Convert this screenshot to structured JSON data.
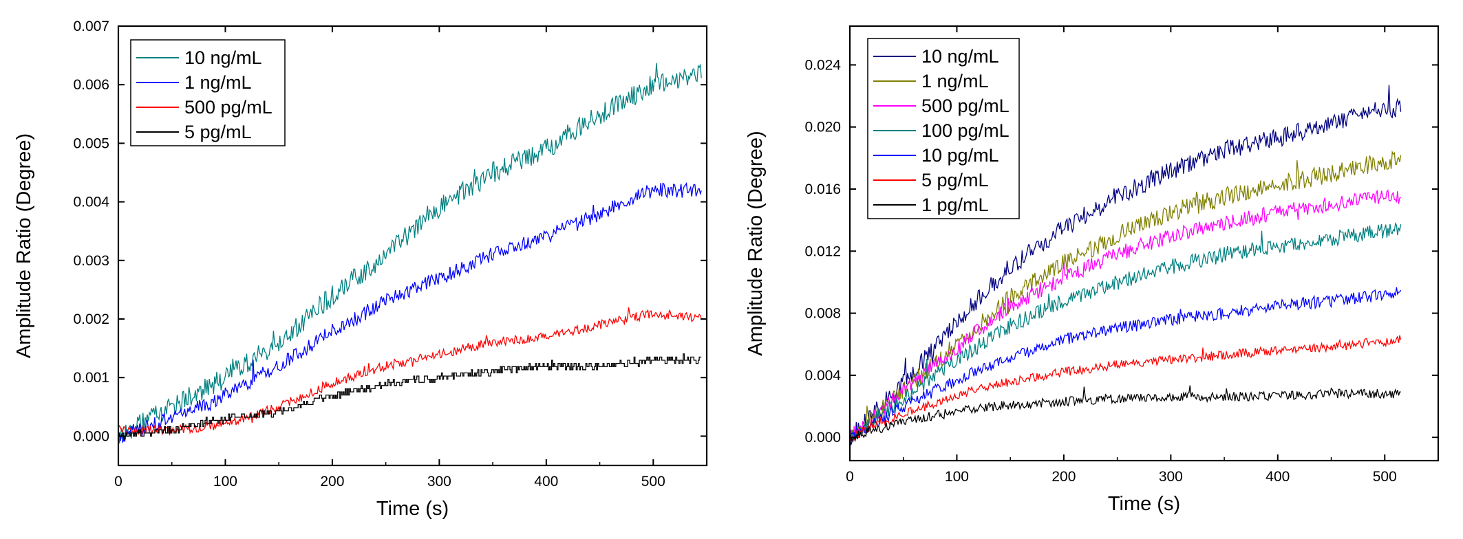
{
  "chart_data": [
    {
      "type": "line",
      "xlabel": "Time (s)",
      "ylabel": "Amplitude Ratio (Degree)",
      "xlim": [
        0,
        550
      ],
      "ylim": [
        -0.0005,
        0.007
      ],
      "xticks": [
        0,
        100,
        200,
        300,
        400,
        500
      ],
      "yticks": [
        0.0,
        0.001,
        0.002,
        0.003,
        0.004,
        0.005,
        0.006,
        0.007
      ],
      "ytick_labels": [
        "0.000",
        "0.001",
        "0.002",
        "0.003",
        "0.004",
        "0.005",
        "0.006",
        "0.007"
      ],
      "legend_position": "top-left",
      "grid": false,
      "series": [
        {
          "name": "10 ng/mL",
          "color": "#008080",
          "x": [
            0,
            50,
            100,
            150,
            200,
            250,
            300,
            350,
            400,
            450,
            500,
            545
          ],
          "y": [
            0.0,
            0.0005,
            0.001,
            0.0016,
            0.0024,
            0.0031,
            0.0039,
            0.0045,
            0.0049,
            0.0055,
            0.006,
            0.0062
          ],
          "noise": 0.00018,
          "step": false
        },
        {
          "name": "1 ng/mL",
          "color": "#0000ff",
          "x": [
            0,
            50,
            100,
            150,
            200,
            250,
            300,
            350,
            400,
            450,
            500,
            545
          ],
          "y": [
            0.0,
            0.0003,
            0.0007,
            0.0012,
            0.0018,
            0.0023,
            0.0027,
            0.0031,
            0.0034,
            0.0038,
            0.0042,
            0.0042
          ],
          "noise": 0.00013,
          "step": false
        },
        {
          "name": "500 pg/mL",
          "color": "#ff0000",
          "x": [
            0,
            50,
            100,
            150,
            200,
            250,
            300,
            350,
            400,
            450,
            500,
            545
          ],
          "y": [
            0.0001,
            0.0001,
            0.0002,
            0.0005,
            0.0009,
            0.0012,
            0.0014,
            0.0016,
            0.0017,
            0.0019,
            0.0021,
            0.002
          ],
          "noise": 8e-05,
          "step": false
        },
        {
          "name": "5 pg/mL",
          "color": "#000000",
          "x": [
            0,
            50,
            100,
            150,
            200,
            250,
            300,
            350,
            400,
            450,
            500,
            545
          ],
          "y": [
            0.0,
            0.0001,
            0.0003,
            0.0004,
            0.0007,
            0.0009,
            0.001,
            0.0011,
            0.0012,
            0.0012,
            0.0013,
            0.0013
          ],
          "noise": 6e-05,
          "step": true
        }
      ]
    },
    {
      "type": "line",
      "xlabel": "Time (s)",
      "ylabel": "Amplitude Ratio (Degree)",
      "xlim": [
        0,
        550
      ],
      "ylim": [
        -0.0015,
        0.0265
      ],
      "xticks": [
        0,
        100,
        200,
        300,
        400,
        500
      ],
      "yticks": [
        0.0,
        0.004,
        0.008,
        0.012,
        0.016,
        0.02,
        0.024
      ],
      "ytick_labels": [
        "0.000",
        "0.004",
        "0.008",
        "0.012",
        "0.016",
        "0.020",
        "0.024"
      ],
      "legend_position": "top-left",
      "grid": false,
      "series": [
        {
          "name": "10 ng/mL",
          "color": "#000080",
          "x": [
            0,
            50,
            100,
            150,
            200,
            250,
            300,
            350,
            400,
            450,
            500,
            515
          ],
          "y": [
            0.0,
            0.0035,
            0.0075,
            0.011,
            0.0135,
            0.0155,
            0.0172,
            0.0185,
            0.0193,
            0.0203,
            0.0212,
            0.0212
          ],
          "noise": 0.0006,
          "step": false
        },
        {
          "name": "1 ng/mL",
          "color": "#808000",
          "x": [
            0,
            50,
            100,
            150,
            200,
            250,
            300,
            350,
            400,
            450,
            500,
            515
          ],
          "y": [
            0.0,
            0.003,
            0.006,
            0.009,
            0.0112,
            0.013,
            0.0145,
            0.0155,
            0.0163,
            0.017,
            0.0178,
            0.0178
          ],
          "noise": 0.0006,
          "step": false
        },
        {
          "name": "500 pg/mL",
          "color": "#ff00ff",
          "x": [
            0,
            50,
            100,
            150,
            200,
            250,
            300,
            350,
            400,
            450,
            500,
            515
          ],
          "y": [
            0.0,
            0.003,
            0.0058,
            0.0085,
            0.0103,
            0.0118,
            0.013,
            0.0138,
            0.0145,
            0.015,
            0.0155,
            0.0155
          ],
          "noise": 0.0005,
          "step": false
        },
        {
          "name": "100 pg/mL",
          "color": "#008080",
          "x": [
            0,
            50,
            100,
            150,
            200,
            250,
            300,
            350,
            400,
            450,
            500,
            515
          ],
          "y": [
            0.0,
            0.0025,
            0.005,
            0.0072,
            0.0088,
            0.01,
            0.011,
            0.0118,
            0.0123,
            0.0128,
            0.0133,
            0.0134
          ],
          "noise": 0.0005,
          "step": false
        },
        {
          "name": "10 pg/mL",
          "color": "#0000ff",
          "x": [
            0,
            50,
            100,
            150,
            200,
            250,
            300,
            350,
            400,
            450,
            500,
            515
          ],
          "y": [
            0.0,
            0.002,
            0.0037,
            0.0052,
            0.0063,
            0.007,
            0.0076,
            0.008,
            0.0085,
            0.0088,
            0.0092,
            0.0093
          ],
          "noise": 0.0004,
          "step": false
        },
        {
          "name": "5 pg/mL",
          "color": "#ff0000",
          "x": [
            0,
            50,
            100,
            150,
            200,
            250,
            300,
            350,
            400,
            450,
            500,
            515
          ],
          "y": [
            0.0,
            0.0015,
            0.0027,
            0.0036,
            0.0042,
            0.0047,
            0.005,
            0.0053,
            0.0056,
            0.0058,
            0.0062,
            0.0063
          ],
          "noise": 0.0003,
          "step": false
        },
        {
          "name": "1 pg/mL",
          "color": "#000000",
          "x": [
            0,
            50,
            100,
            150,
            200,
            250,
            300,
            350,
            400,
            450,
            500,
            515
          ],
          "y": [
            0.0,
            0.001,
            0.0017,
            0.0021,
            0.0023,
            0.0025,
            0.0026,
            0.0026,
            0.0027,
            0.0028,
            0.0028,
            0.0028
          ],
          "noise": 0.0003,
          "step": false
        }
      ]
    }
  ]
}
